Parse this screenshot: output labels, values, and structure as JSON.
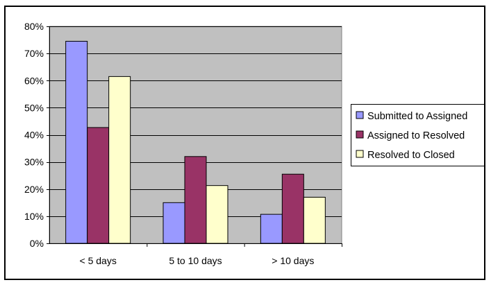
{
  "chart_data": {
    "type": "bar",
    "categories": [
      "< 5 days",
      "5 to 10 days",
      "> 10 days"
    ],
    "series": [
      {
        "name": "Submitted to Assigned",
        "values": [
          74.5,
          15,
          10.7
        ],
        "color": "#9999ff"
      },
      {
        "name": "Assigned to Resolved",
        "values": [
          42.7,
          32,
          25.5
        ],
        "color": "#993366"
      },
      {
        "name": "Resolved to Closed",
        "values": [
          61.5,
          21.3,
          17
        ],
        "color": "#ffffcc"
      }
    ],
    "ylim": [
      0,
      80
    ],
    "yticks": [
      "0%",
      "10%",
      "20%",
      "30%",
      "40%",
      "50%",
      "60%",
      "70%",
      "80%"
    ],
    "ytick_values": [
      0,
      10,
      20,
      30,
      40,
      50,
      60,
      70,
      80
    ],
    "grid": true,
    "plot_background": "#c0c0c0",
    "legend_position": "right",
    "title": "",
    "xlabel": "",
    "ylabel": ""
  }
}
